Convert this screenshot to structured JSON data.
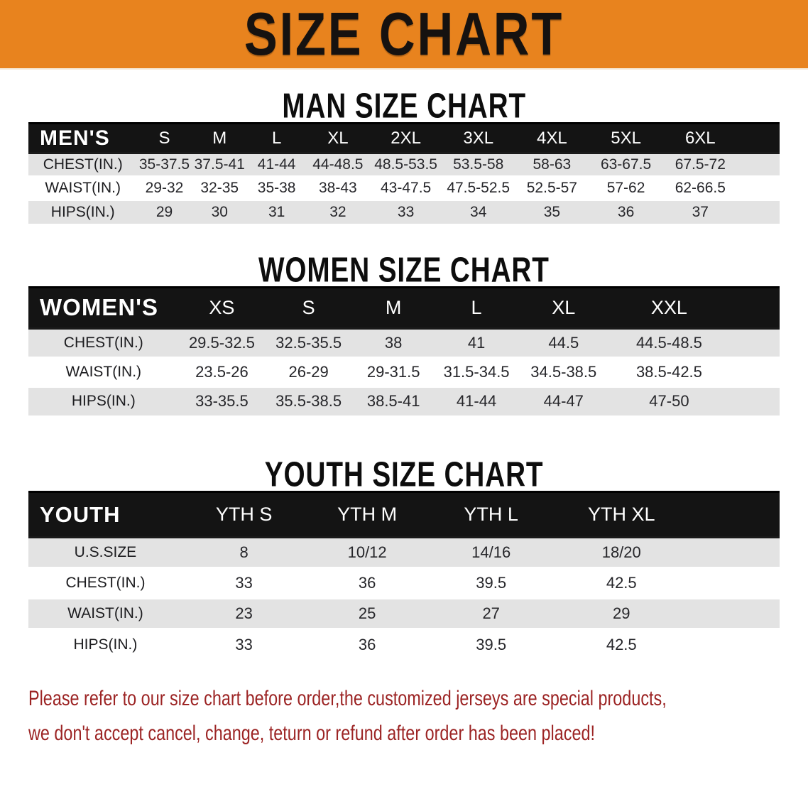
{
  "banner": {
    "title": "SIZE CHART"
  },
  "colors": {
    "banner_bg": "#e8831e",
    "table_header_bar": "#141414",
    "row_stripe": "#e3e3e3",
    "disclaimer_text": "#9c2424"
  },
  "sections": [
    {
      "heading": "MAN SIZE CHART",
      "header": [
        "MEN'S",
        "S",
        "M",
        "L",
        "XL",
        "2XL",
        "3XL",
        "4XL",
        "5XL",
        "6XL"
      ],
      "rows": [
        {
          "label": "CHEST(IN.)",
          "values": [
            "35-37.5",
            "37.5-41",
            "41-44",
            "44-48.5",
            "48.5-53.5",
            "53.5-58",
            "58-63",
            "63-67.5",
            "67.5-72"
          ]
        },
        {
          "label": "WAIST(IN.)",
          "values": [
            "29-32",
            "32-35",
            "35-38",
            "38-43",
            "43-47.5",
            "47.5-52.5",
            "52.5-57",
            "57-62",
            "62-66.5"
          ]
        },
        {
          "label": "HIPS(IN.)",
          "values": [
            "29",
            "30",
            "31",
            "32",
            "33",
            "34",
            "35",
            "36",
            "37"
          ]
        }
      ]
    },
    {
      "heading": "WOMEN SIZE CHART",
      "header": [
        "WOMEN'S",
        "XS",
        "S",
        "M",
        "L",
        "XL",
        "XXL"
      ],
      "rows": [
        {
          "label": "CHEST(IN.)",
          "values": [
            "29.5-32.5",
            "32.5-35.5",
            "38",
            "41",
            "44.5",
            "44.5-48.5"
          ]
        },
        {
          "label": "WAIST(IN.)",
          "values": [
            "23.5-26",
            "26-29",
            "29-31.5",
            "31.5-34.5",
            "34.5-38.5",
            "38.5-42.5"
          ]
        },
        {
          "label": "HIPS(IN.)",
          "values": [
            "33-35.5",
            "35.5-38.5",
            "38.5-41",
            "41-44",
            "44-47",
            "47-50"
          ]
        }
      ]
    },
    {
      "heading": "YOUTH SIZE CHART",
      "header": [
        "YOUTH",
        "YTH S",
        "YTH M",
        "YTH L",
        "YTH XL"
      ],
      "rows": [
        {
          "label": "U.S.SIZE",
          "values": [
            "8",
            "10/12",
            "14/16",
            "18/20"
          ]
        },
        {
          "label": "CHEST(IN.)",
          "values": [
            "33",
            "36",
            "39.5",
            "42.5"
          ]
        },
        {
          "label": "WAIST(IN.)",
          "values": [
            "23",
            "25",
            "27",
            "29"
          ]
        },
        {
          "label": "HIPS(IN.)",
          "values": [
            "33",
            "36",
            "39.5",
            "42.5"
          ]
        }
      ]
    }
  ],
  "disclaimer": {
    "line1": "Please refer to our size chart before order,the customized jerseys are special products,",
    "line2": "we don't accept cancel, change, teturn or refund after order has been placed!"
  }
}
